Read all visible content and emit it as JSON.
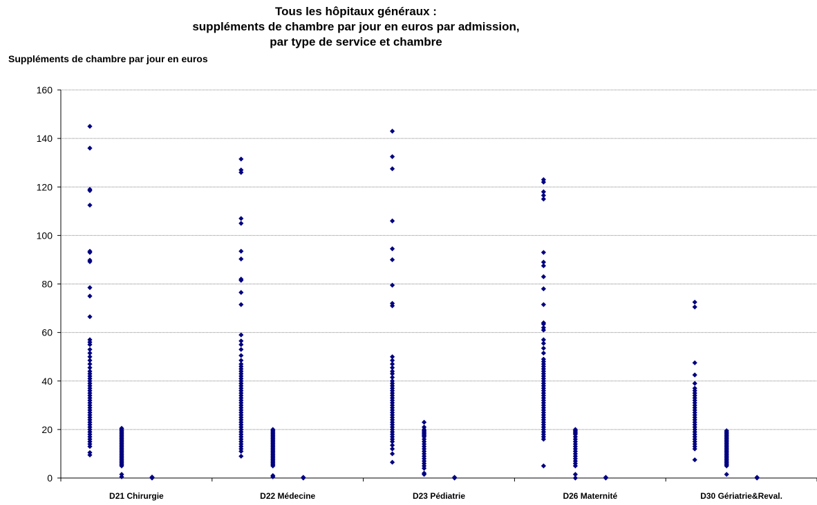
{
  "chart_data": {
    "type": "scatter",
    "title": [
      "Tous les hôpitaux généraux :",
      "suppléments de chambre par jour en euros par admission,",
      "par type de service et chambre"
    ],
    "ylabel": "Suppléments de chambre par jour en euros",
    "xlabel": "",
    "ylim": [
      0,
      160
    ],
    "yticks": [
      0,
      20,
      40,
      60,
      80,
      100,
      120,
      140,
      160
    ],
    "grid": "horizontal",
    "legend": "none",
    "marker_color": "#000080",
    "categories": [
      "D21 Chirurgie",
      "D22 Médecine",
      "D23 Pédiatrie",
      "D26 Maternité",
      "D30 Gériatrie&Reval."
    ],
    "series": [
      {
        "category": "D21 Chirurgie",
        "slot": 0,
        "values": [
          145,
          136,
          119,
          118.5,
          112.5,
          93.5,
          93,
          89.8,
          89.2,
          78.5,
          75,
          66.5,
          57,
          56,
          55,
          53,
          51.5,
          50,
          48.5,
          47,
          45.5,
          44,
          43,
          42,
          41,
          40,
          39,
          38,
          37,
          36,
          35,
          34,
          33,
          32,
          31,
          30,
          29,
          28,
          27,
          26,
          25,
          24,
          23,
          22,
          21,
          20,
          19,
          18,
          17,
          16,
          15,
          14,
          13,
          10.5,
          9.5
        ]
      },
      {
        "category": "D21 Chirurgie",
        "slot": 1,
        "values": [
          20.5,
          20,
          19.5,
          19,
          18.5,
          18,
          17.5,
          17,
          16.5,
          16,
          15.5,
          15,
          14.5,
          14,
          13.5,
          13,
          12.5,
          12,
          11.5,
          11,
          10.5,
          10,
          9.5,
          9,
          8.5,
          8,
          7.5,
          7,
          6.5,
          6,
          5.5,
          5,
          1.5,
          0.5
        ]
      },
      {
        "category": "D21 Chirurgie",
        "slot": 2,
        "values": [
          0.4,
          0.2,
          0
        ]
      },
      {
        "category": "D22 Médecine",
        "slot": 0,
        "values": [
          131.5,
          127,
          126,
          107,
          105,
          93.5,
          90.3,
          82,
          81.5,
          76.5,
          71.5,
          59,
          56.5,
          55,
          53,
          50.5,
          48.5,
          47,
          46,
          45,
          44,
          43,
          42,
          41,
          40,
          39,
          38,
          37,
          36,
          35,
          34,
          33,
          32,
          31,
          30,
          29,
          28,
          27,
          26,
          25,
          24,
          23,
          22,
          21,
          20,
          19,
          18,
          17,
          16,
          15,
          14,
          13,
          12,
          11,
          9
        ]
      },
      {
        "category": "D22 Médecine",
        "slot": 1,
        "values": [
          20,
          19.5,
          19,
          18.5,
          18,
          17.5,
          17,
          16.5,
          16,
          15.5,
          15,
          14.5,
          14,
          13.5,
          13,
          12.5,
          12,
          11.5,
          11,
          10.5,
          10,
          9.5,
          9,
          8.5,
          8,
          7.5,
          7,
          6.5,
          6,
          5.5,
          5,
          1,
          0.5
        ]
      },
      {
        "category": "D22 Médecine",
        "slot": 2,
        "values": [
          0.3,
          0
        ]
      },
      {
        "category": "D23 Pédiatrie",
        "slot": 0,
        "values": [
          143,
          132.5,
          127.5,
          106,
          94.5,
          90,
          79.5,
          72,
          71,
          50,
          48.5,
          47,
          45.5,
          44,
          43,
          41.5,
          40,
          39,
          38,
          37,
          36,
          35,
          34,
          33,
          32,
          31,
          30,
          29,
          28,
          27,
          26,
          25,
          24,
          23,
          22,
          21,
          20,
          19,
          18,
          17,
          16,
          15,
          13.5,
          12,
          10,
          6.5
        ]
      },
      {
        "category": "D23 Pédiatrie",
        "slot": 1,
        "values": [
          23,
          21,
          20,
          19.5,
          19,
          18.5,
          18,
          17.5,
          17,
          16,
          15,
          14,
          13,
          12,
          11,
          10,
          9,
          8,
          7,
          6,
          5,
          4,
          2,
          1.5
        ]
      },
      {
        "category": "D23 Pédiatrie",
        "slot": 2,
        "values": [
          0.3,
          0
        ]
      },
      {
        "category": "D26 Maternité",
        "slot": 0,
        "values": [
          123,
          122,
          118,
          116.5,
          115,
          93,
          89,
          87.5,
          83,
          78,
          71.5,
          64,
          63.5,
          62,
          61,
          57,
          55.5,
          53.5,
          51.5,
          49,
          48,
          47,
          46,
          45,
          44,
          43,
          42,
          41,
          40,
          39,
          38,
          37,
          36,
          35,
          34,
          33,
          32,
          31,
          30,
          29,
          28,
          27,
          26,
          25,
          24,
          23,
          22,
          21,
          20,
          19,
          18,
          17,
          16,
          5
        ]
      },
      {
        "category": "D26 Maternité",
        "slot": 1,
        "values": [
          20,
          19.5,
          19,
          18.5,
          18,
          17,
          16,
          15,
          14,
          13,
          12,
          11,
          10,
          9,
          8,
          7,
          6,
          5,
          1.5,
          0
        ]
      },
      {
        "category": "D26 Maternité",
        "slot": 2,
        "values": [
          0.3,
          0
        ]
      },
      {
        "category": "D30 Gériatrie&Reval.",
        "slot": 0,
        "values": [
          72.5,
          70.5,
          47.5,
          42.5,
          39,
          37,
          36,
          35,
          34,
          33,
          32,
          31,
          30,
          29,
          28,
          27,
          26,
          25,
          24,
          23,
          22,
          21,
          20,
          19,
          18,
          17,
          16,
          15,
          14,
          13,
          12,
          7.5
        ]
      },
      {
        "category": "D30 Gériatrie&Reval.",
        "slot": 1,
        "values": [
          19.5,
          19,
          18.5,
          18,
          17.5,
          17,
          16.5,
          16,
          15.5,
          15,
          14.5,
          14,
          13.5,
          13,
          12.5,
          12,
          11.5,
          11,
          10.5,
          10,
          9.5,
          9,
          8.5,
          8,
          7.5,
          7,
          6.5,
          6,
          5.5,
          5,
          1.5
        ]
      },
      {
        "category": "D30 Gériatrie&Reval.",
        "slot": 2,
        "values": [
          0.3,
          0
        ]
      }
    ]
  }
}
